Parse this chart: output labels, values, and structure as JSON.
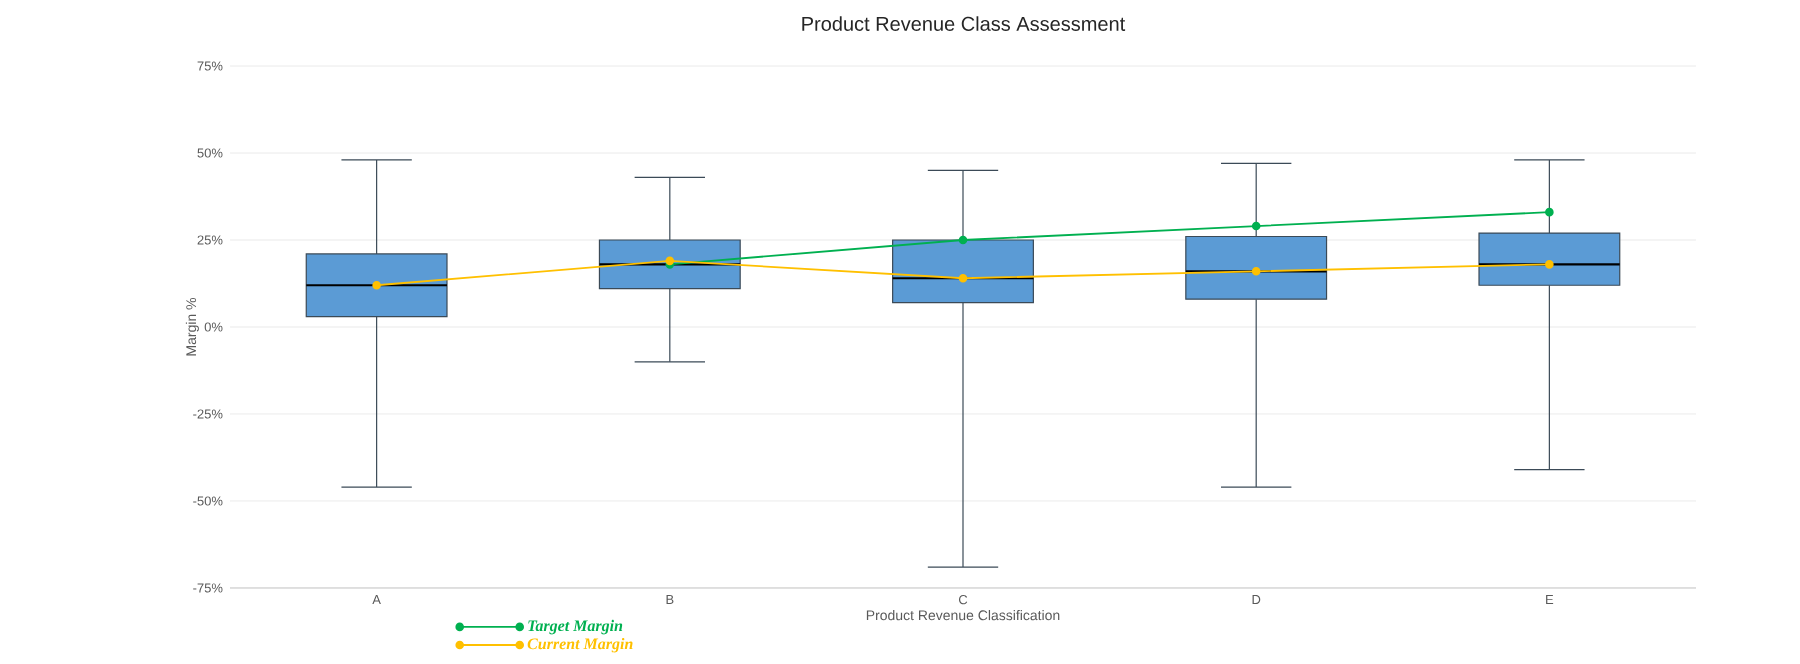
{
  "chart_data": {
    "type": "box",
    "title": "Product Revenue Class Assessment",
    "xlabel": "Product Revenue Classification",
    "ylabel": "Margin %",
    "categories": [
      "A",
      "B",
      "C",
      "D",
      "E"
    ],
    "ylim": [
      -75,
      75
    ],
    "yticks": [
      {
        "value": -75,
        "label": "-75%"
      },
      {
        "value": -50,
        "label": "-50%"
      },
      {
        "value": -25,
        "label": "-25%"
      },
      {
        "value": 0,
        "label": "0%"
      },
      {
        "value": 25,
        "label": "25%"
      },
      {
        "value": 50,
        "label": "50%"
      },
      {
        "value": 75,
        "label": "75%"
      }
    ],
    "grid": "y",
    "legend": "bottom left",
    "marker": "circle",
    "series": [
      {
        "color": "#5b9bd5",
        "boxes": [
          {
            "low": -46,
            "q1": 3,
            "median": 12,
            "q3": 21,
            "high": 48
          },
          {
            "low": -10,
            "q1": 11,
            "median": 18,
            "q3": 25,
            "high": 43
          },
          {
            "low": -69,
            "q1": 7,
            "median": 14,
            "q3": 25,
            "high": 45
          },
          {
            "low": -46,
            "q1": 8,
            "median": 16,
            "q3": 26,
            "high": 47
          },
          {
            "low": -41,
            "q1": 12,
            "median": 18,
            "q3": 27,
            "high": 48
          }
        ]
      },
      {
        "type": "line",
        "name": "Target Margin",
        "color": "#00b050",
        "values": [
          null,
          18,
          25,
          29,
          33
        ]
      },
      {
        "type": "line",
        "name": "Current Margin",
        "color": "#ffc000",
        "values": [
          12,
          19,
          14,
          16,
          18
        ]
      }
    ]
  }
}
